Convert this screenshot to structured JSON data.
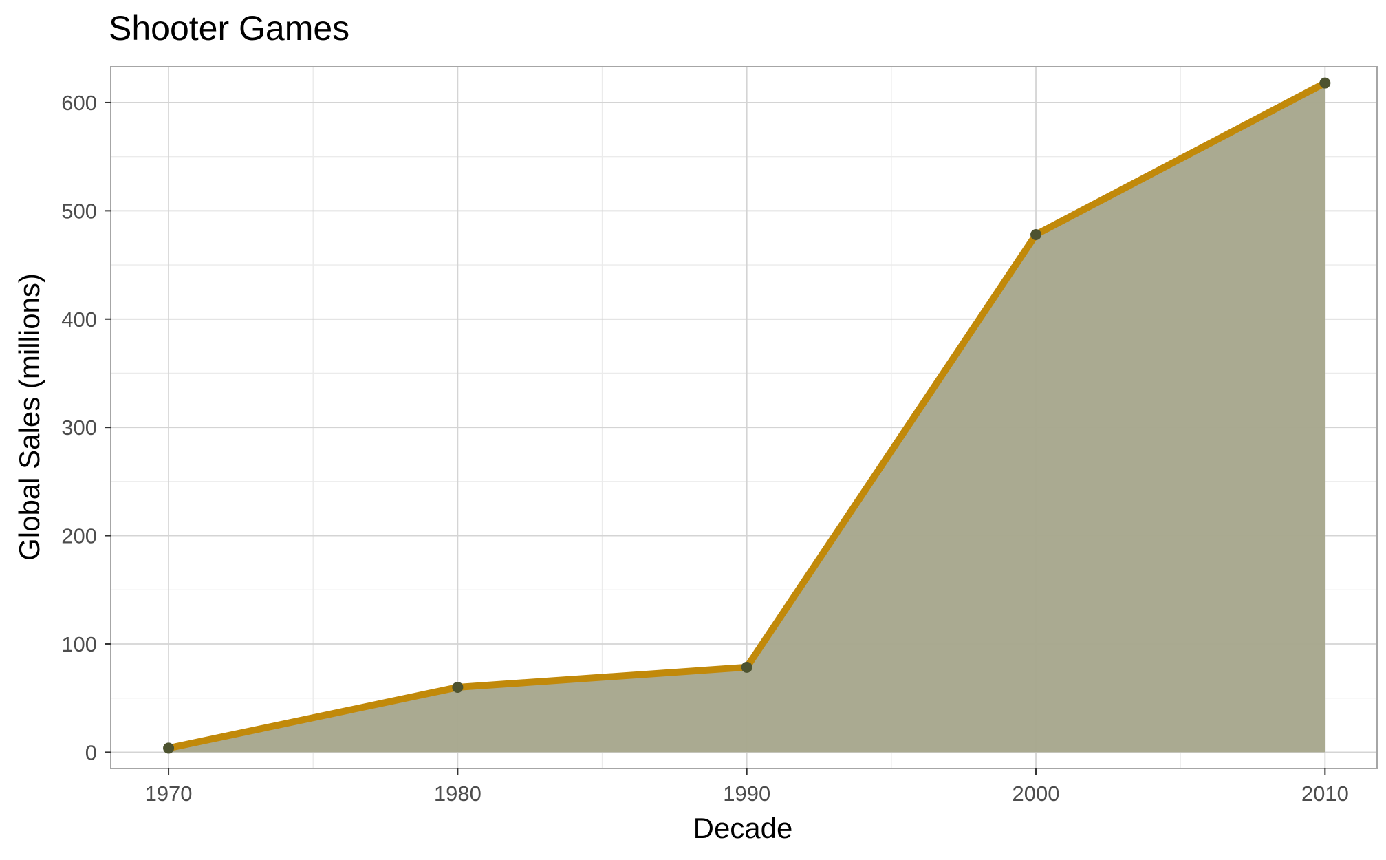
{
  "chart_data": {
    "type": "area",
    "title": "Shooter Games",
    "xlabel": "Decade",
    "ylabel": "Global Sales (millions)",
    "x": [
      1970,
      1980,
      1990,
      2000,
      2010
    ],
    "values": [
      3.8,
      60.0,
      78.5,
      478.0,
      618.0
    ],
    "x_ticks": [
      "1970",
      "1980",
      "1990",
      "2000",
      "2010"
    ],
    "y_ticks": [
      "0",
      "100",
      "200",
      "300",
      "400",
      "500",
      "600"
    ],
    "xlim": [
      1968,
      2011.8
    ],
    "ylim": [
      -15,
      633
    ],
    "grid": true,
    "legend": "none",
    "colors": {
      "line": "#c1890a",
      "area": "#a7a78d",
      "points": "#4d5330",
      "grid_major": "#d4d4d4",
      "grid_minor": "#ebebeb",
      "panel_border": "#a6a6a6"
    }
  }
}
